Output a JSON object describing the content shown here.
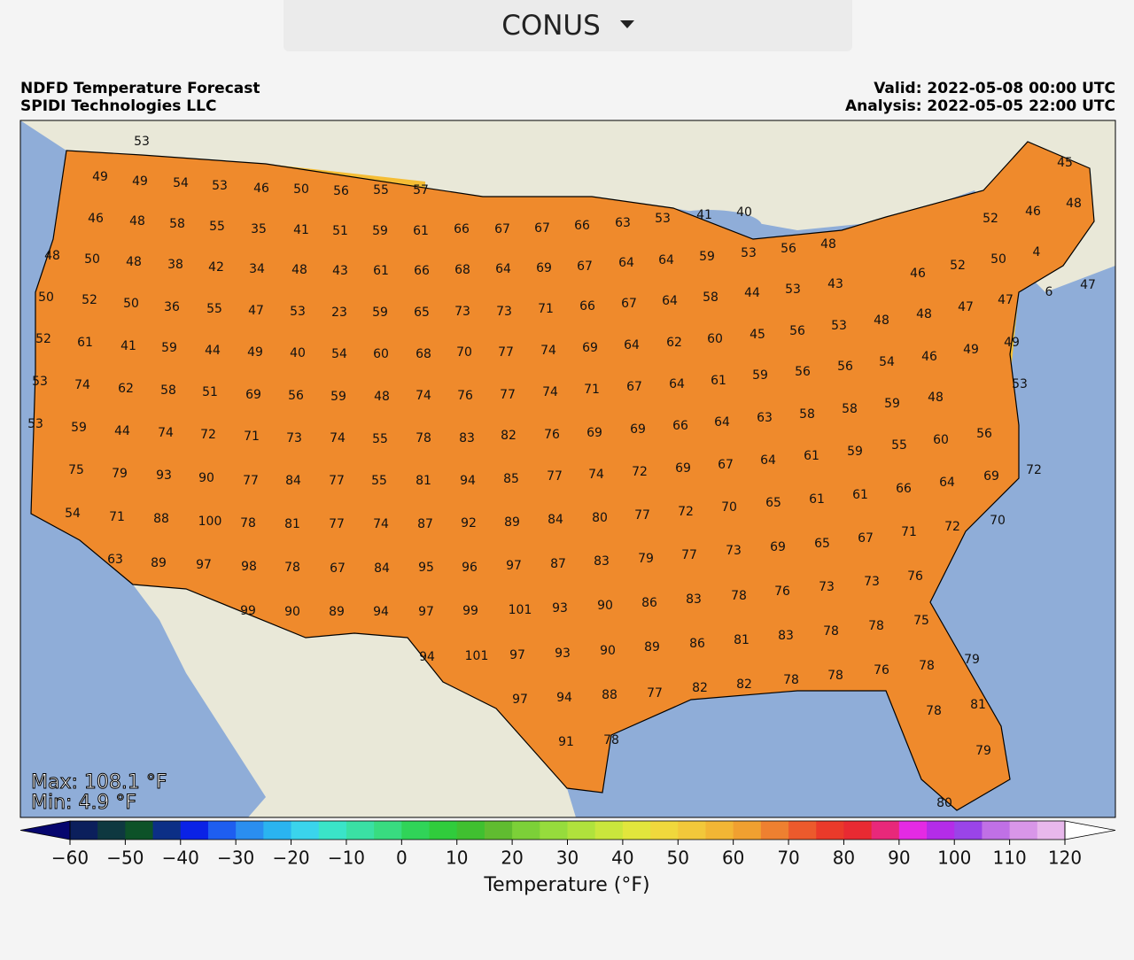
{
  "selector": {
    "label": "CONUS"
  },
  "header": {
    "title": "NDFD Temperature Forecast",
    "source": "SPIDI Technologies LLC",
    "valid": "Valid: 2022-05-08 00:00 UTC",
    "analysis": "Analysis: 2022-05-05 22:00 UTC"
  },
  "map": {
    "max": "Max: 108.1 °F",
    "min": "Min: 4.9 °F",
    "labels": [
      53,
      49,
      49,
      54,
      53,
      46,
      50,
      56,
      55,
      57,
      45,
      46,
      48,
      58,
      55,
      35,
      41,
      51,
      59,
      61,
      66,
      67,
      67,
      66,
      63,
      53,
      41,
      40,
      52,
      46,
      48,
      48,
      50,
      48,
      38,
      42,
      34,
      48,
      43,
      61,
      66,
      68,
      64,
      69,
      67,
      64,
      64,
      59,
      53,
      56,
      48,
      46,
      52,
      50,
      4,
      47,
      50,
      52,
      50,
      36,
      55,
      47,
      53,
      23,
      59,
      65,
      73,
      73,
      71,
      66,
      67,
      64,
      58,
      44,
      53,
      43,
      48,
      47,
      47,
      6,
      52,
      61,
      41,
      59,
      44,
      49,
      40,
      54,
      60,
      68,
      70,
      77,
      74,
      69,
      64,
      62,
      60,
      45,
      56,
      53,
      48,
      54,
      46,
      49,
      49,
      53,
      74,
      62,
      58,
      51,
      69,
      56,
      59,
      48,
      74,
      76,
      77,
      74,
      71,
      67,
      64,
      61,
      59,
      56,
      56,
      53,
      53,
      59,
      44,
      74,
      72,
      71,
      73,
      74,
      55,
      78,
      83,
      82,
      76,
      69,
      69,
      66,
      64,
      63,
      58,
      58,
      59,
      48,
      56,
      75,
      79,
      93,
      90,
      77,
      84,
      77,
      55,
      81,
      94,
      85,
      77,
      74,
      72,
      69,
      67,
      64,
      61,
      59,
      55,
      60,
      69,
      72,
      54,
      71,
      88,
      100,
      78,
      81,
      77,
      74,
      87,
      92,
      89,
      84,
      80,
      77,
      72,
      70,
      65,
      61,
      61,
      66,
      64,
      71,
      72,
      70,
      63,
      89,
      97,
      98,
      78,
      67,
      84,
      95,
      96,
      97,
      87,
      83,
      79,
      77,
      73,
      69,
      65,
      67,
      76,
      73,
      99,
      90,
      89,
      94,
      97,
      99,
      101,
      93,
      90,
      86,
      83,
      78,
      76,
      73,
      94,
      101,
      97,
      93,
      90,
      89,
      86,
      81,
      83,
      78,
      78,
      75,
      97,
      94,
      88,
      77,
      82,
      82,
      78,
      78,
      76,
      78,
      79,
      91,
      78,
      78,
      81,
      79,
      80
    ]
  },
  "colorbar": {
    "label": "Temperature (°F)",
    "lim": [
      -60,
      120
    ],
    "ticks": [
      {
        "value": -60,
        "label": "−60"
      },
      {
        "value": -50,
        "label": "−50"
      },
      {
        "value": -40,
        "label": "−40"
      },
      {
        "value": -30,
        "label": "−30"
      },
      {
        "value": -20,
        "label": "−20"
      },
      {
        "value": -10,
        "label": "−10"
      },
      0,
      10,
      20,
      30,
      40,
      50,
      60,
      70,
      80,
      90,
      100,
      110,
      120
    ],
    "under": "#06066e",
    "over": "#ffffff",
    "colors": [
      "#0b1f5c",
      "#0e3840",
      "#0d5228",
      "#0c2f86",
      "#0a22e6",
      "#1e5ef0",
      "#2a8ef0",
      "#2ab4f0",
      "#3ad4ec",
      "#3ae4c8",
      "#3ae0a4",
      "#38dc80",
      "#30d458",
      "#30cc3c",
      "#40c030",
      "#60bc30",
      "#7cd038",
      "#96dc3c",
      "#b0e23c",
      "#cae63c",
      "#e2e63c",
      "#f0d83c",
      "#f2c83a",
      "#f2b634",
      "#f0a030",
      "#ee8030",
      "#ec5a2c",
      "#ea3a2a",
      "#e82a32",
      "#e8287a",
      "#e42ae4",
      "#b42ce8",
      "#9a44e8",
      "#c070e6",
      "#d896e8",
      "#e8b8ec"
    ]
  }
}
